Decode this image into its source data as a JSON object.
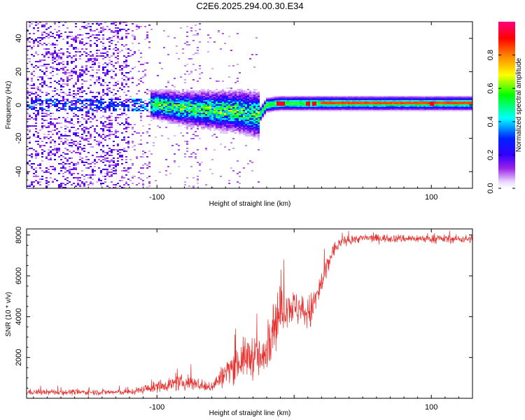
{
  "chart_data": [
    {
      "type": "heatmap",
      "title": "C2E6.2025.294.00.30.E34",
      "xlabel": "Height of straight line (km)",
      "ylabel": "Frequency (Hz)",
      "xlim": [
        -195,
        130
      ],
      "ylim": [
        -50,
        50
      ],
      "xticks": [
        -100,
        0,
        100
      ],
      "xtick_labels": [
        "-100",
        "",
        "100"
      ],
      "yticks": [
        -40,
        -20,
        0,
        20,
        40
      ],
      "ytick_labels": [
        "-40",
        "-20",
        "0",
        "20",
        "40"
      ],
      "colorbar": {
        "label": "Normalized spectral amplitude",
        "range": [
          0,
          1
        ],
        "ticks": [
          0,
          0.2,
          0.4,
          0.6,
          0.8
        ],
        "tick_labels": [
          "0.0",
          "0.2",
          "0.4",
          "0.6",
          "0.8"
        ],
        "colormap": [
          "#ffffff",
          "#9400d3",
          "#4b00ff",
          "#0000ff",
          "#00ffff",
          "#00ff00",
          "#ffff00",
          "#ff7f00",
          "#ff0000",
          "#ff00ff"
        ]
      },
      "band": {
        "center_hz": [
          {
            "x": -195,
            "f": 0
          },
          {
            "x": -120,
            "f": 0
          },
          {
            "x": -100,
            "f": 0
          },
          {
            "x": -80,
            "f": -2
          },
          {
            "x": -60,
            "f": -3
          },
          {
            "x": -40,
            "f": -4
          },
          {
            "x": -25,
            "f": -6
          },
          {
            "x": -20,
            "f": 0
          },
          {
            "x": -10,
            "f": 1
          },
          {
            "x": 10,
            "f": 1
          },
          {
            "x": 40,
            "f": 1
          },
          {
            "x": 130,
            "f": 1
          }
        ],
        "bright_spots_x": [
          -12,
          -8,
          10,
          14,
          100
        ]
      }
    },
    {
      "type": "line",
      "xlabel": "Height of straight line (km)",
      "ylabel": "SNR (10 * v/v)",
      "xlim": [
        -195,
        130
      ],
      "ylim": [
        0,
        8300
      ],
      "xticks": [
        -100,
        0,
        100
      ],
      "xtick_labels": [
        "-100",
        "",
        "100"
      ],
      "yticks": [
        2000,
        4000,
        6000,
        8000
      ],
      "ytick_labels": [
        "2000",
        "4000",
        "6000",
        "8000"
      ],
      "series": [
        {
          "name": "SNR",
          "color": "#e8302e",
          "envelope": [
            {
              "x": -195,
              "mean": 300,
              "noise": 250
            },
            {
              "x": -120,
              "mean": 300,
              "noise": 250
            },
            {
              "x": -105,
              "mean": 500,
              "noise": 400
            },
            {
              "x": -90,
              "mean": 700,
              "noise": 600
            },
            {
              "x": -75,
              "mean": 800,
              "noise": 700
            },
            {
              "x": -62,
              "mean": 500,
              "noise": 400
            },
            {
              "x": -55,
              "mean": 900,
              "noise": 800
            },
            {
              "x": -45,
              "mean": 1600,
              "noise": 1400
            },
            {
              "x": -35,
              "mean": 2000,
              "noise": 1800
            },
            {
              "x": -28,
              "mean": 2100,
              "noise": 2000
            },
            {
              "x": -22,
              "mean": 1800,
              "noise": 1700
            },
            {
              "x": -18,
              "mean": 3500,
              "noise": 3000
            },
            {
              "x": -12,
              "mean": 4000,
              "noise": 2500
            },
            {
              "x": -5,
              "mean": 4600,
              "noise": 1700
            },
            {
              "x": 5,
              "mean": 4300,
              "noise": 1500
            },
            {
              "x": 12,
              "mean": 4200,
              "noise": 1600
            },
            {
              "x": 20,
              "mean": 5600,
              "noise": 1300
            },
            {
              "x": 28,
              "mean": 7200,
              "noise": 700
            },
            {
              "x": 35,
              "mean": 7700,
              "noise": 400
            },
            {
              "x": 50,
              "mean": 7850,
              "noise": 350
            },
            {
              "x": 130,
              "mean": 7800,
              "noise": 350
            }
          ]
        }
      ]
    }
  ]
}
